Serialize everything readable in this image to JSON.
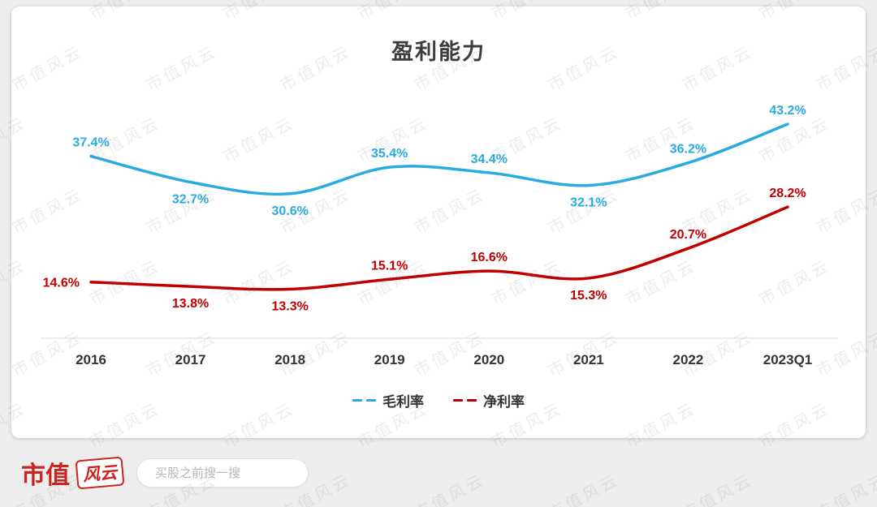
{
  "title": "盈利能力",
  "chart_data": {
    "type": "line",
    "title": "盈利能力",
    "categories": [
      "2016",
      "2017",
      "2018",
      "2019",
      "2020",
      "2021",
      "2022",
      "2023Q1"
    ],
    "series": [
      {
        "name": "毛利率",
        "color": "#29ABE2",
        "values": [
          37.4,
          32.7,
          30.6,
          35.4,
          34.4,
          32.1,
          36.2,
          43.2
        ],
        "label_positions": [
          "above",
          "below",
          "below",
          "above",
          "above",
          "below",
          "above",
          "above"
        ]
      },
      {
        "name": "净利率",
        "color": "#C00000",
        "values": [
          14.6,
          13.8,
          13.3,
          15.1,
          16.6,
          15.3,
          20.7,
          28.2
        ],
        "label_positions": [
          "left",
          "below",
          "below",
          "above",
          "above",
          "below",
          "above",
          "above"
        ]
      }
    ],
    "value_suffix": "%",
    "ylim": [
      10,
      46
    ],
    "grid": false,
    "legend_position": "bottom"
  },
  "watermark": {
    "text": "市值风云"
  },
  "footer": {
    "brand_text": "市值",
    "brand_logo_text": "风云",
    "search_placeholder": "买股之前搜一搜"
  }
}
